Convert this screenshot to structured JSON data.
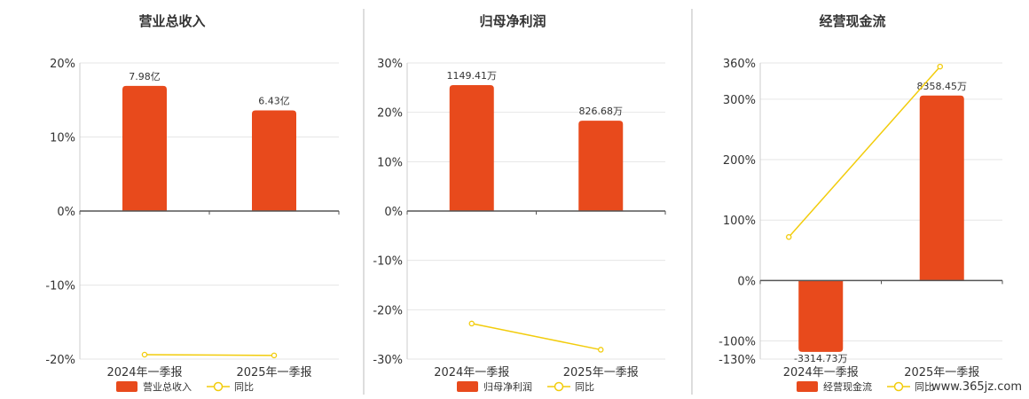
{
  "colors": {
    "bar": "#E84A1C",
    "line": "#F2CC0C",
    "grid": "#E6E6E6",
    "axis": "#333333",
    "divider": "#BBBBBB"
  },
  "watermark": "www.365jz.com",
  "chart_data": [
    {
      "type": "bar",
      "title": "营业总收入",
      "categories": [
        "2024年一季报",
        "2025年一季报"
      ],
      "yticks": [
        "20%",
        "10%",
        "0%",
        "-10%",
        "-20%"
      ],
      "ylim": [
        -20,
        20
      ],
      "series": [
        {
          "name": "营业总收入",
          "type": "bar",
          "values": [
            16.9,
            13.6
          ],
          "labels": [
            "7.98亿",
            "6.43亿"
          ]
        },
        {
          "name": "同比",
          "type": "line",
          "values": [
            -19.4,
            -19.5
          ]
        }
      ],
      "legend": "bottom"
    },
    {
      "type": "bar",
      "title": "归母净利润",
      "categories": [
        "2024年一季报",
        "2025年一季报"
      ],
      "yticks": [
        "30%",
        "20%",
        "10%",
        "0%",
        "-10%",
        "-20%",
        "-30%"
      ],
      "ylim": [
        -30,
        30
      ],
      "series": [
        {
          "name": "归母净利润",
          "type": "bar",
          "values": [
            25.5,
            18.3
          ],
          "labels": [
            "1149.41万",
            "826.68万"
          ]
        },
        {
          "name": "同比",
          "type": "line",
          "values": [
            -22.8,
            -28.1
          ]
        }
      ],
      "legend": "bottom"
    },
    {
      "type": "bar",
      "title": "经营现金流",
      "categories": [
        "2024年一季报",
        "2025年一季报"
      ],
      "yticks": [
        "360%",
        "300%",
        "200%",
        "100%",
        "0%",
        "-100%",
        "-130%"
      ],
      "ylim": [
        -130,
        360
      ],
      "series": [
        {
          "name": "经营现金流",
          "type": "bar",
          "values": [
            -118,
            306
          ],
          "labels": [
            "-3314.73万",
            "8358.45万"
          ]
        },
        {
          "name": "同比",
          "type": "line",
          "values": [
            72,
            354
          ]
        }
      ],
      "legend": "bottom"
    }
  ]
}
